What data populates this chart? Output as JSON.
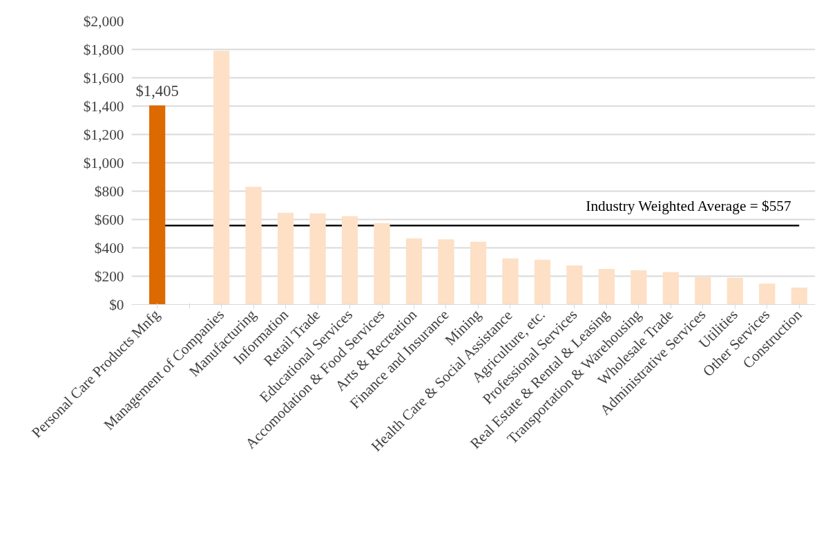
{
  "chart_data": {
    "type": "bar",
    "categories": [
      "Personal Care Products Mnfg",
      null,
      "Management of Companies",
      "Manufacturing",
      "Information",
      "Retail Trade",
      "Educational Services",
      "Accomodation & Food Services",
      "Arts & Recreation",
      "Finance and Insurance",
      "Mining",
      "Health Care & Social Assistance",
      "Agriculture, etc.",
      "Professional Services",
      "Real Estate & Rental & Leasing",
      "Transportation & Warehousing",
      "Wholesale Trade",
      "Administrative Services",
      "Utilities",
      "Other Services",
      "Construction"
    ],
    "values": [
      1405,
      null,
      1790,
      830,
      648,
      643,
      623,
      574,
      467,
      460,
      443,
      326,
      316,
      276,
      251,
      242,
      229,
      194,
      189,
      147,
      119
    ],
    "colors": [
      "#dc6a00",
      "#fde0c5",
      "#fde0c5",
      "#fde0c5",
      "#fde0c5",
      "#fde0c5",
      "#fde0c5",
      "#fde0c5",
      "#fde0c5",
      "#fde0c5",
      "#fde0c5",
      "#fde0c5",
      "#fde0c5",
      "#fde0c5",
      "#fde0c5",
      "#fde0c5",
      "#fde0c5",
      "#fde0c5",
      "#fde0c5",
      "#fde0c5",
      "#fde0c5"
    ],
    "value_labels": [
      "$1,405",
      null,
      null,
      null,
      null,
      null,
      null,
      null,
      null,
      null,
      null,
      null,
      null,
      null,
      null,
      null,
      null,
      null,
      null,
      null,
      null
    ],
    "ylim": [
      0,
      2000
    ],
    "yticks": [
      {
        "value": 0,
        "label": "$0"
      },
      {
        "value": 200,
        "label": "$200"
      },
      {
        "value": 400,
        "label": "$400"
      },
      {
        "value": 600,
        "label": "$600"
      },
      {
        "value": 800,
        "label": "$800"
      },
      {
        "value": 1000,
        "label": "$1,000"
      },
      {
        "value": 1200,
        "label": "$1,200"
      },
      {
        "value": 1400,
        "label": "$1,400"
      },
      {
        "value": 1600,
        "label": "$1,600"
      },
      {
        "value": 1800,
        "label": "$1,800"
      },
      {
        "value": 2000,
        "label": "$2,000"
      }
    ],
    "ref_lines": [
      {
        "axis": "y",
        "value": 557,
        "label": "Industry Weighted Average = $557",
        "color": "#000000"
      }
    ],
    "grid": "y"
  }
}
